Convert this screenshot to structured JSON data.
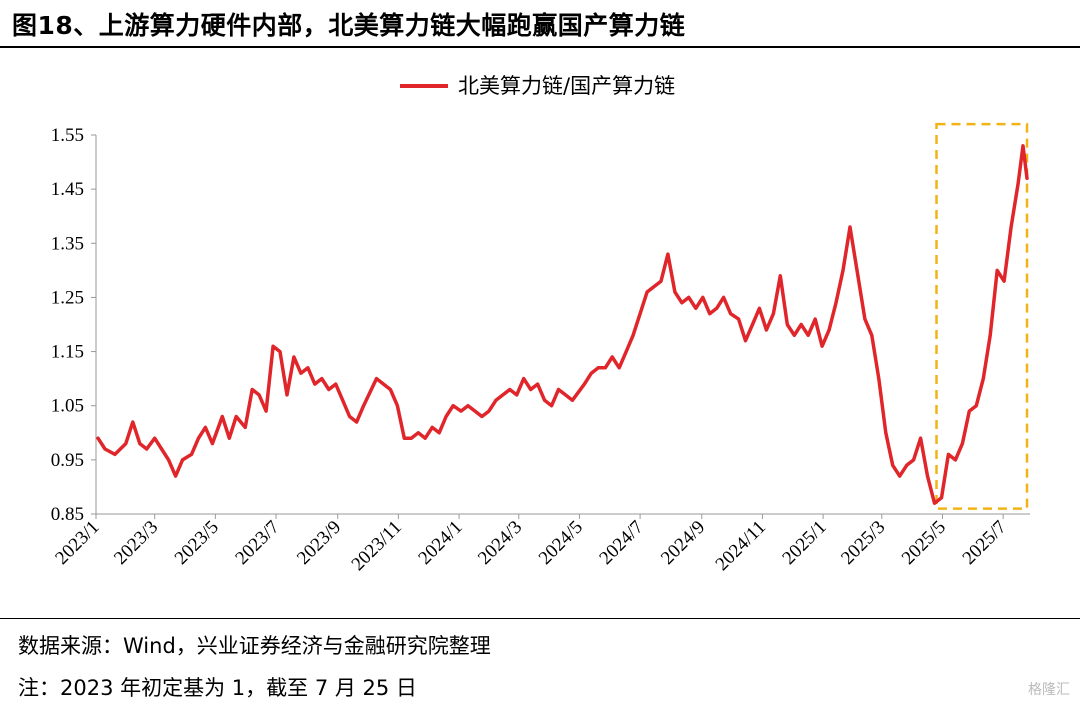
{
  "title": "图18、上游算力硬件内部，北美算力链大幅跑赢国产算力链",
  "source": "数据来源：Wind，兴业证券经济与金融研究院整理",
  "note": "注：2023 年初定基为 1，截至 7 月 25 日",
  "watermark": "格隆汇",
  "colors": {
    "series": "#e0262a",
    "highlight": "#f2b316"
  },
  "chart_data": {
    "type": "line",
    "title": "",
    "xlabel": "",
    "ylabel": "",
    "ylim": [
      0.85,
      1.55
    ],
    "yticks": [
      0.85,
      0.95,
      1.05,
      1.15,
      1.25,
      1.35,
      1.45,
      1.55
    ],
    "ytick_labels": [
      "0.85",
      "0.95",
      "1.05",
      "1.15",
      "1.25",
      "1.35",
      "1.45",
      "1.55"
    ],
    "xticks": [
      "2023/1",
      "2023/3",
      "2023/5",
      "2023/7",
      "2023/9",
      "2023/11",
      "2024/1",
      "2024/3",
      "2024/5",
      "2024/7",
      "2024/9",
      "2024/11",
      "2025/1",
      "2025/3",
      "2025/5",
      "2025/7"
    ],
    "legend": "top-center",
    "highlight_box": {
      "x_start": "2025/4 (late)",
      "x_end": "2025/7/25",
      "y_start": 0.86,
      "y_end": 1.57
    },
    "series": [
      {
        "name": "北美算力链/国产算力链",
        "points": [
          [
            "2023-01-03",
            0.99
          ],
          [
            "2023-01-10",
            0.97
          ],
          [
            "2023-01-20",
            0.96
          ],
          [
            "2023-01-31",
            0.98
          ],
          [
            "2023-02-07",
            1.02
          ],
          [
            "2023-02-14",
            0.98
          ],
          [
            "2023-02-21",
            0.97
          ],
          [
            "2023-03-01",
            0.99
          ],
          [
            "2023-03-08",
            0.97
          ],
          [
            "2023-03-15",
            0.95
          ],
          [
            "2023-03-22",
            0.92
          ],
          [
            "2023-03-29",
            0.95
          ],
          [
            "2023-04-07",
            0.96
          ],
          [
            "2023-04-14",
            0.99
          ],
          [
            "2023-04-21",
            1.01
          ],
          [
            "2023-04-28",
            0.98
          ],
          [
            "2023-05-08",
            1.03
          ],
          [
            "2023-05-15",
            0.99
          ],
          [
            "2023-05-22",
            1.03
          ],
          [
            "2023-05-31",
            1.01
          ],
          [
            "2023-06-07",
            1.08
          ],
          [
            "2023-06-14",
            1.07
          ],
          [
            "2023-06-21",
            1.04
          ],
          [
            "2023-06-28",
            1.16
          ],
          [
            "2023-07-05",
            1.15
          ],
          [
            "2023-07-12",
            1.07
          ],
          [
            "2023-07-19",
            1.14
          ],
          [
            "2023-07-26",
            1.11
          ],
          [
            "2023-08-02",
            1.12
          ],
          [
            "2023-08-09",
            1.09
          ],
          [
            "2023-08-16",
            1.1
          ],
          [
            "2023-08-23",
            1.08
          ],
          [
            "2023-08-30",
            1.09
          ],
          [
            "2023-09-06",
            1.06
          ],
          [
            "2023-09-13",
            1.03
          ],
          [
            "2023-09-20",
            1.02
          ],
          [
            "2023-09-27",
            1.05
          ],
          [
            "2023-10-10",
            1.1
          ],
          [
            "2023-10-17",
            1.09
          ],
          [
            "2023-10-24",
            1.08
          ],
          [
            "2023-10-31",
            1.05
          ],
          [
            "2023-11-07",
            0.99
          ],
          [
            "2023-11-14",
            0.99
          ],
          [
            "2023-11-21",
            1.0
          ],
          [
            "2023-11-28",
            0.99
          ],
          [
            "2023-12-05",
            1.01
          ],
          [
            "2023-12-12",
            1.0
          ],
          [
            "2023-12-19",
            1.03
          ],
          [
            "2023-12-26",
            1.05
          ],
          [
            "2024-01-03",
            1.04
          ],
          [
            "2024-01-10",
            1.05
          ],
          [
            "2024-01-17",
            1.04
          ],
          [
            "2024-01-24",
            1.03
          ],
          [
            "2024-01-31",
            1.04
          ],
          [
            "2024-02-07",
            1.06
          ],
          [
            "2024-02-21",
            1.08
          ],
          [
            "2024-02-28",
            1.07
          ],
          [
            "2024-03-06",
            1.1
          ],
          [
            "2024-03-13",
            1.08
          ],
          [
            "2024-03-20",
            1.09
          ],
          [
            "2024-03-27",
            1.06
          ],
          [
            "2024-04-03",
            1.05
          ],
          [
            "2024-04-10",
            1.08
          ],
          [
            "2024-04-17",
            1.07
          ],
          [
            "2024-04-24",
            1.06
          ],
          [
            "2024-05-06",
            1.09
          ],
          [
            "2024-05-13",
            1.11
          ],
          [
            "2024-05-20",
            1.12
          ],
          [
            "2024-05-27",
            1.12
          ],
          [
            "2024-06-03",
            1.14
          ],
          [
            "2024-06-10",
            1.12
          ],
          [
            "2024-06-17",
            1.15
          ],
          [
            "2024-06-24",
            1.18
          ],
          [
            "2024-07-01",
            1.22
          ],
          [
            "2024-07-08",
            1.26
          ],
          [
            "2024-07-15",
            1.27
          ],
          [
            "2024-07-22",
            1.28
          ],
          [
            "2024-07-29",
            1.33
          ],
          [
            "2024-08-05",
            1.26
          ],
          [
            "2024-08-12",
            1.24
          ],
          [
            "2024-08-19",
            1.25
          ],
          [
            "2024-08-26",
            1.23
          ],
          [
            "2024-09-02",
            1.25
          ],
          [
            "2024-09-09",
            1.22
          ],
          [
            "2024-09-16",
            1.23
          ],
          [
            "2024-09-23",
            1.25
          ],
          [
            "2024-09-30",
            1.22
          ],
          [
            "2024-10-08",
            1.21
          ],
          [
            "2024-10-15",
            1.17
          ],
          [
            "2024-10-22",
            1.2
          ],
          [
            "2024-10-29",
            1.23
          ],
          [
            "2024-11-05",
            1.19
          ],
          [
            "2024-11-12",
            1.22
          ],
          [
            "2024-11-19",
            1.29
          ],
          [
            "2024-11-26",
            1.2
          ],
          [
            "2024-12-03",
            1.18
          ],
          [
            "2024-12-10",
            1.2
          ],
          [
            "2024-12-17",
            1.18
          ],
          [
            "2024-12-24",
            1.21
          ],
          [
            "2024-12-31",
            1.16
          ],
          [
            "2025-01-07",
            1.19
          ],
          [
            "2025-01-14",
            1.24
          ],
          [
            "2025-01-21",
            1.3
          ],
          [
            "2025-01-28",
            1.38
          ],
          [
            "2025-02-05",
            1.29
          ],
          [
            "2025-02-12",
            1.21
          ],
          [
            "2025-02-19",
            1.18
          ],
          [
            "2025-02-26",
            1.1
          ],
          [
            "2025-03-05",
            1.0
          ],
          [
            "2025-03-12",
            0.94
          ],
          [
            "2025-03-19",
            0.92
          ],
          [
            "2025-03-26",
            0.94
          ],
          [
            "2025-04-02",
            0.95
          ],
          [
            "2025-04-09",
            0.99
          ],
          [
            "2025-04-16",
            0.92
          ],
          [
            "2025-04-23",
            0.87
          ],
          [
            "2025-04-30",
            0.88
          ],
          [
            "2025-05-07",
            0.96
          ],
          [
            "2025-05-14",
            0.95
          ],
          [
            "2025-05-21",
            0.98
          ],
          [
            "2025-05-28",
            1.04
          ],
          [
            "2025-06-04",
            1.05
          ],
          [
            "2025-06-11",
            1.1
          ],
          [
            "2025-06-18",
            1.18
          ],
          [
            "2025-06-25",
            1.3
          ],
          [
            "2025-07-02",
            1.28
          ],
          [
            "2025-07-09",
            1.38
          ],
          [
            "2025-07-16",
            1.46
          ],
          [
            "2025-07-21",
            1.53
          ],
          [
            "2025-07-25",
            1.47
          ]
        ]
      }
    ]
  }
}
